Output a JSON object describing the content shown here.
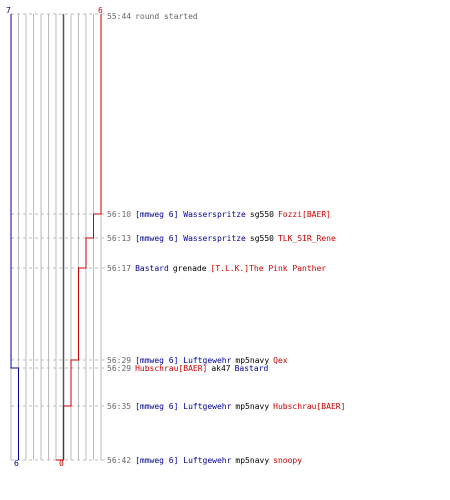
{
  "colors": {
    "blue": "#000099",
    "red": "#cc0000",
    "grid": "#bbbbbb",
    "center": "#555555",
    "text": "#666666"
  },
  "team_scores": {
    "blue_start": "7",
    "red_start": "6",
    "blue_end": "6",
    "red_end": "0"
  },
  "round_start": {
    "time": "55:44",
    "text": "round started"
  },
  "events": [
    {
      "time": "56:10",
      "killer": "[mmweg 6] Wasserspritze",
      "killer_team": "blue",
      "weapon": "sg550",
      "victim": "Fozzi[BAER]",
      "victim_team": "red"
    },
    {
      "time": "56:13",
      "killer": "[mmweg 6] Wasserspritze",
      "killer_team": "blue",
      "weapon": "sg550",
      "victim": "TLK_SIR_Rene",
      "victim_team": "red"
    },
    {
      "time": "56:17",
      "killer": "Bastard",
      "killer_team": "blue",
      "weapon": "grenade",
      "victim": "[T.L.K.]The Pink Panther",
      "victim_team": "red"
    },
    {
      "time": "56:29",
      "killer": "[mmweg 6] Luftgewehr",
      "killer_team": "blue",
      "weapon": "mp5navy",
      "victim": "Qex",
      "victim_team": "red"
    },
    {
      "time": "56:29",
      "killer": "Hubschrau[BAER]",
      "killer_team": "red",
      "weapon": "ak47",
      "victim": "Bastard",
      "victim_team": "blue"
    },
    {
      "time": "56:35",
      "killer": "[mmweg 6] Luftgewehr",
      "killer_team": "blue",
      "weapon": "mp5navy",
      "victim": "Hubschrau[BAER]",
      "victim_team": "red"
    },
    {
      "time": "56:42",
      "killer": "[mmweg 6] Luftgewehr",
      "killer_team": "blue",
      "weapon": "mp5navy",
      "victim": "snoopy",
      "victim_team": "red"
    }
  ]
}
